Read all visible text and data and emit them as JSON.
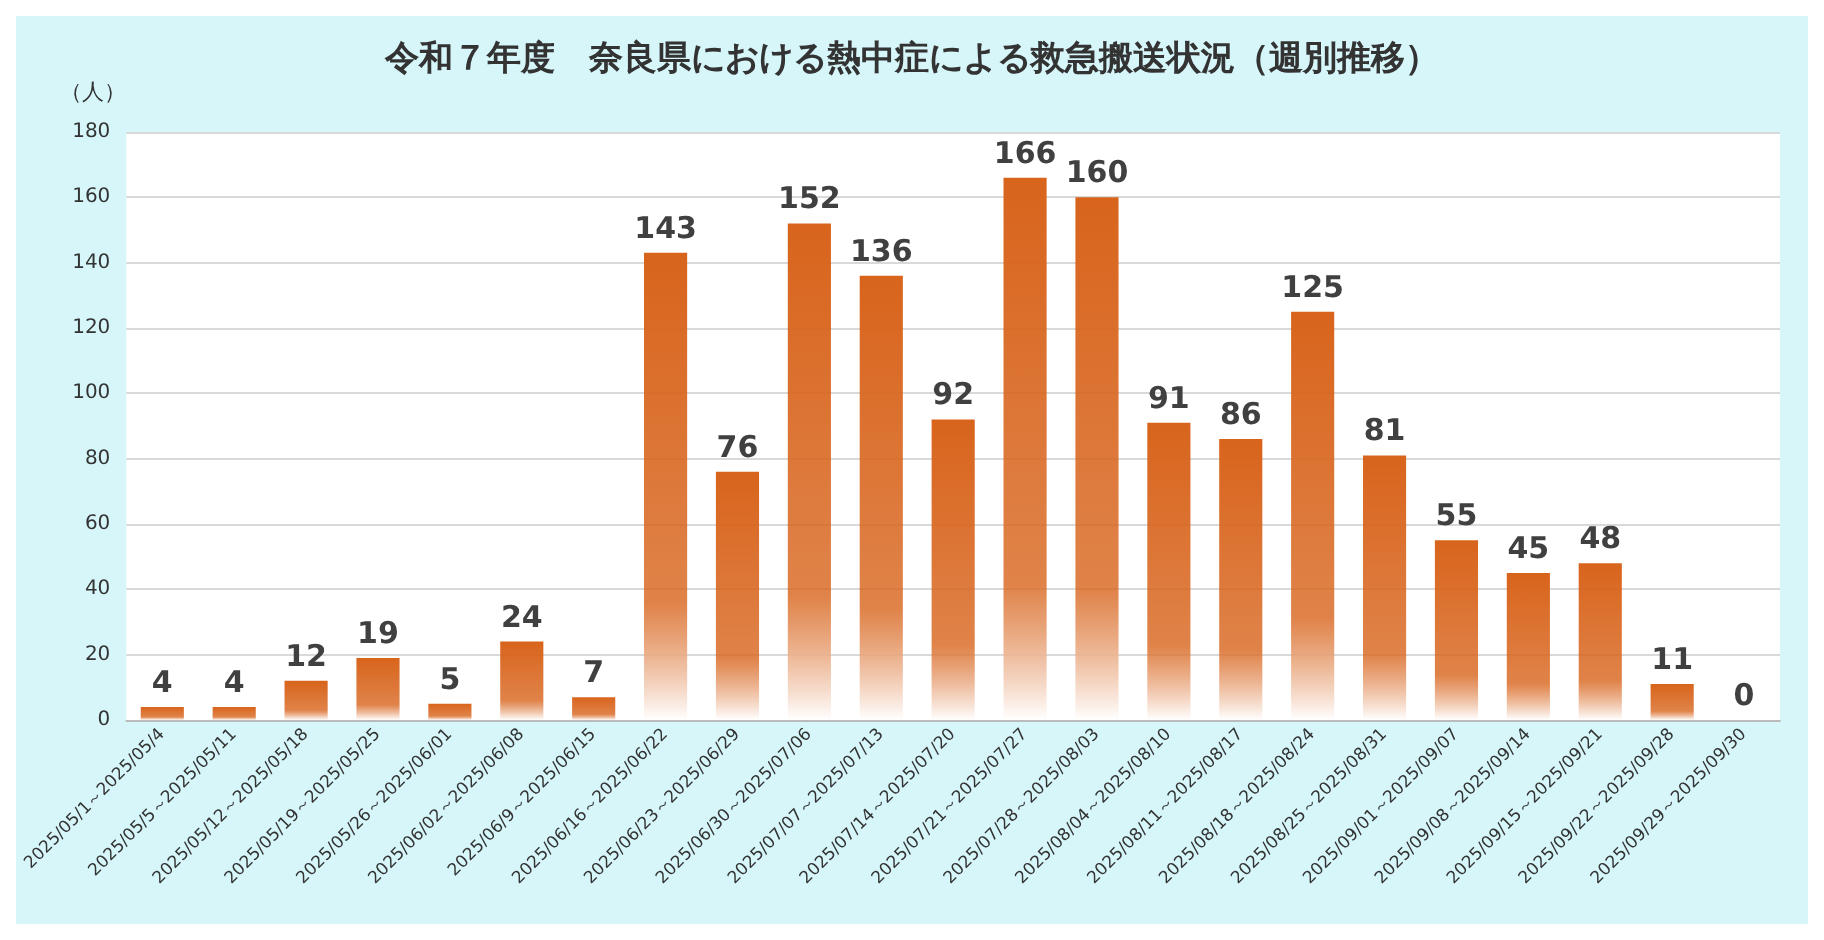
{
  "chart_data": {
    "type": "bar",
    "title": "令和７年度　奈良県における熱中症による救急搬送状況（週別推移）",
    "ylabel": "（人）",
    "categories": [
      "2025/05/1～2025/05/4",
      "2025/05/5～2025/05/11",
      "2025/05/12～2025/05/18",
      "2025/05/19～2025/05/25",
      "2025/05/26～2025/06/01",
      "2025/06/02～2025/06/08",
      "2025/06/9～2025/06/15",
      "2025/06/16～2025/06/22",
      "2025/06/23～2025/06/29",
      "2025/06/30～2025/07/06",
      "2025/07/07～2025/07/13",
      "2025/07/14～2025/07/20",
      "2025/07/21～2025/07/27",
      "2025/07/28～2025/08/03",
      "2025/08/04～2025/08/10",
      "2025/08/11～2025/08/17",
      "2025/08/18～2025/08/24",
      "2025/08/25～2025/08/31",
      "2025/09/01～2025/09/07",
      "2025/09/08～2025/09/14",
      "2025/09/15～2025/09/21",
      "2025/09/22～2025/09/28",
      "2025/09/29～2025/09/30"
    ],
    "values": [
      4,
      4,
      12,
      19,
      5,
      24,
      7,
      143,
      76,
      152,
      136,
      92,
      166,
      160,
      91,
      86,
      125,
      81,
      55,
      45,
      48,
      11,
      0
    ],
    "color": "#d8641c",
    "ylim": [
      0,
      180
    ],
    "yticks": [
      0,
      20,
      40,
      60,
      80,
      100,
      120,
      140,
      160,
      180
    ],
    "grid": "y",
    "data_labels": true
  }
}
